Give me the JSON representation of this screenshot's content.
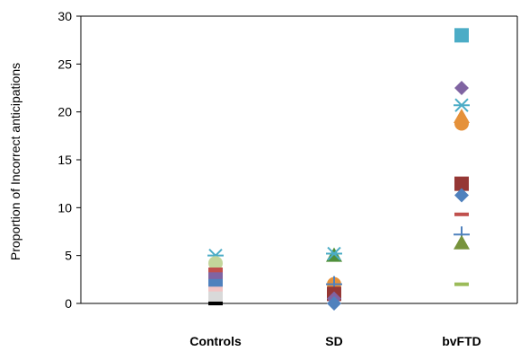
{
  "chart_data": {
    "type": "scatter",
    "ylabel": "Proportion  of Incorrect  anticipations",
    "categories": [
      "Controls",
      "SD",
      "bvFTD"
    ],
    "ylim": [
      0,
      30
    ],
    "yticks": [
      0,
      5,
      10,
      15,
      20,
      25,
      30
    ],
    "grid": false,
    "points": [
      {
        "category": "Controls",
        "y": 5.0,
        "marker": "star",
        "color": "#4bacc6"
      },
      {
        "category": "Controls",
        "y": 4.2,
        "marker": "circle",
        "color": "#c3d69b"
      },
      {
        "category": "Controls",
        "y": 3.0,
        "marker": "square",
        "color": "#c0504d"
      },
      {
        "category": "Controls",
        "y": 2.5,
        "marker": "square",
        "color": "#8064a2"
      },
      {
        "category": "Controls",
        "y": 1.8,
        "marker": "square",
        "color": "#4f81bd"
      },
      {
        "category": "Controls",
        "y": 1.0,
        "marker": "square",
        "color": "#f2c4c4"
      },
      {
        "category": "Controls",
        "y": 0.5,
        "marker": "square",
        "color": "#d9d9d9"
      },
      {
        "category": "Controls",
        "y": 0.0,
        "marker": "dash",
        "color": "#000000"
      },
      {
        "category": "SD",
        "y": 5.0,
        "marker": "triangle",
        "color": "#4f8f3a"
      },
      {
        "category": "SD",
        "y": 5.2,
        "marker": "star",
        "color": "#4bacc6"
      },
      {
        "category": "SD",
        "y": 2.0,
        "marker": "circle",
        "color": "#e5913a"
      },
      {
        "category": "SD",
        "y": 2.0,
        "marker": "plus",
        "color": "#4f81bd"
      },
      {
        "category": "SD",
        "y": 1.0,
        "marker": "square",
        "color": "#953735"
      },
      {
        "category": "SD",
        "y": 0.5,
        "marker": "diamond",
        "color": "#8064a2"
      },
      {
        "category": "SD",
        "y": 0.0,
        "marker": "diamond",
        "color": "#4f81bd"
      },
      {
        "category": "bvFTD",
        "y": 28.0,
        "marker": "square",
        "color": "#4bacc6"
      },
      {
        "category": "bvFTD",
        "y": 22.5,
        "marker": "diamond",
        "color": "#8064a2"
      },
      {
        "category": "bvFTD",
        "y": 20.7,
        "marker": "star",
        "color": "#4bacc6"
      },
      {
        "category": "bvFTD",
        "y": 19.5,
        "marker": "triangle",
        "color": "#e5913a"
      },
      {
        "category": "bvFTD",
        "y": 18.8,
        "marker": "circle",
        "color": "#e5913a"
      },
      {
        "category": "bvFTD",
        "y": 12.5,
        "marker": "square",
        "color": "#953735"
      },
      {
        "category": "bvFTD",
        "y": 11.3,
        "marker": "diamond",
        "color": "#4f81bd"
      },
      {
        "category": "bvFTD",
        "y": 9.3,
        "marker": "dash",
        "color": "#c0504d"
      },
      {
        "category": "bvFTD",
        "y": 7.2,
        "marker": "plus",
        "color": "#4f81bd"
      },
      {
        "category": "bvFTD",
        "y": 6.3,
        "marker": "triangle",
        "color": "#77933c"
      },
      {
        "category": "bvFTD",
        "y": 2.0,
        "marker": "dash",
        "color": "#9bbb59"
      }
    ]
  }
}
